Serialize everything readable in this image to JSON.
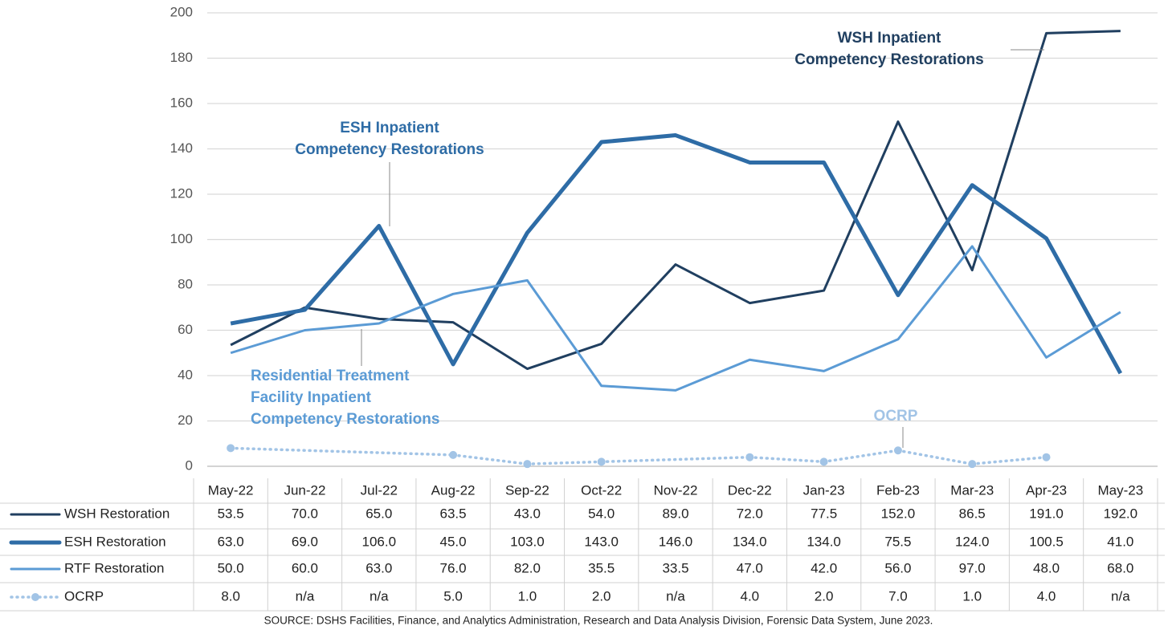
{
  "chart_data": {
    "type": "line",
    "categories": [
      "May-22",
      "Jun-22",
      "Jul-22",
      "Aug-22",
      "Sep-22",
      "Oct-22",
      "Nov-22",
      "Dec-22",
      "Jan-23",
      "Feb-23",
      "Mar-23",
      "Apr-23",
      "May-23"
    ],
    "series": [
      {
        "name": "WSH Restoration",
        "color": "#203f60",
        "width": 3,
        "values": [
          53.5,
          70,
          65,
          63.5,
          43,
          54,
          89,
          72,
          77.5,
          152,
          86.5,
          191,
          192
        ],
        "value_labels": [
          "53.5",
          "70.0",
          "65.0",
          "63.5",
          "43.0",
          "54.0",
          "89.0",
          "72.0",
          "77.5",
          "152.0",
          "86.5",
          "191.0",
          "192.0"
        ]
      },
      {
        "name": "ESH Restoration",
        "color": "#2e6ca6",
        "width": 5,
        "values": [
          63,
          69,
          106,
          45,
          103,
          143,
          146,
          134,
          134,
          75.5,
          124,
          100.5,
          41
        ],
        "value_labels": [
          "63.0",
          "69.0",
          "106.0",
          "45.0",
          "103.0",
          "143.0",
          "146.0",
          "134.0",
          "134.0",
          "75.5",
          "124.0",
          "100.5",
          "41.0"
        ]
      },
      {
        "name": "RTF Restoration",
        "color": "#5b9bd5",
        "width": 3,
        "values": [
          50,
          60,
          63,
          76,
          82,
          35.5,
          33.5,
          47,
          42,
          56,
          97,
          48,
          68
        ],
        "value_labels": [
          "50.0",
          "60.0",
          "63.0",
          "76.0",
          "82.0",
          "35.5",
          "33.5",
          "47.0",
          "42.0",
          "56.0",
          "97.0",
          "48.0",
          "68.0"
        ]
      },
      {
        "name": "OCRP",
        "color": "#a2c4e6",
        "width": 3.5,
        "dotted": true,
        "values": [
          8,
          null,
          null,
          5,
          1,
          2,
          null,
          4,
          2,
          7,
          1,
          4,
          null
        ],
        "value_labels": [
          "8.0",
          "n/a",
          "n/a",
          "5.0",
          "1.0",
          "2.0",
          "n/a",
          "4.0",
          "2.0",
          "7.0",
          "1.0",
          "4.0",
          "n/a"
        ]
      }
    ],
    "ylim": [
      0,
      200
    ],
    "yticks": [
      0,
      20,
      40,
      60,
      80,
      100,
      120,
      140,
      160,
      180,
      200
    ],
    "grid": true,
    "annotations": [
      {
        "text": [
          "WSH Inpatient",
          "Competency Restorations"
        ],
        "color": "#203f60"
      },
      {
        "text": [
          "ESH Inpatient",
          "Competency Restorations"
        ],
        "color": "#2e6ca6"
      },
      {
        "text": [
          "Residential Treatment",
          "Facility Inpatient",
          "Competency Restorations"
        ],
        "color": "#5b9bd5"
      },
      {
        "text": [
          "OCRP"
        ],
        "color": "#a2c4e6"
      }
    ],
    "source": "SOURCE: DSHS Facilities, Finance, and Analytics Administration, Research and Data Analysis Division, Forensic Data System, June 2023."
  }
}
